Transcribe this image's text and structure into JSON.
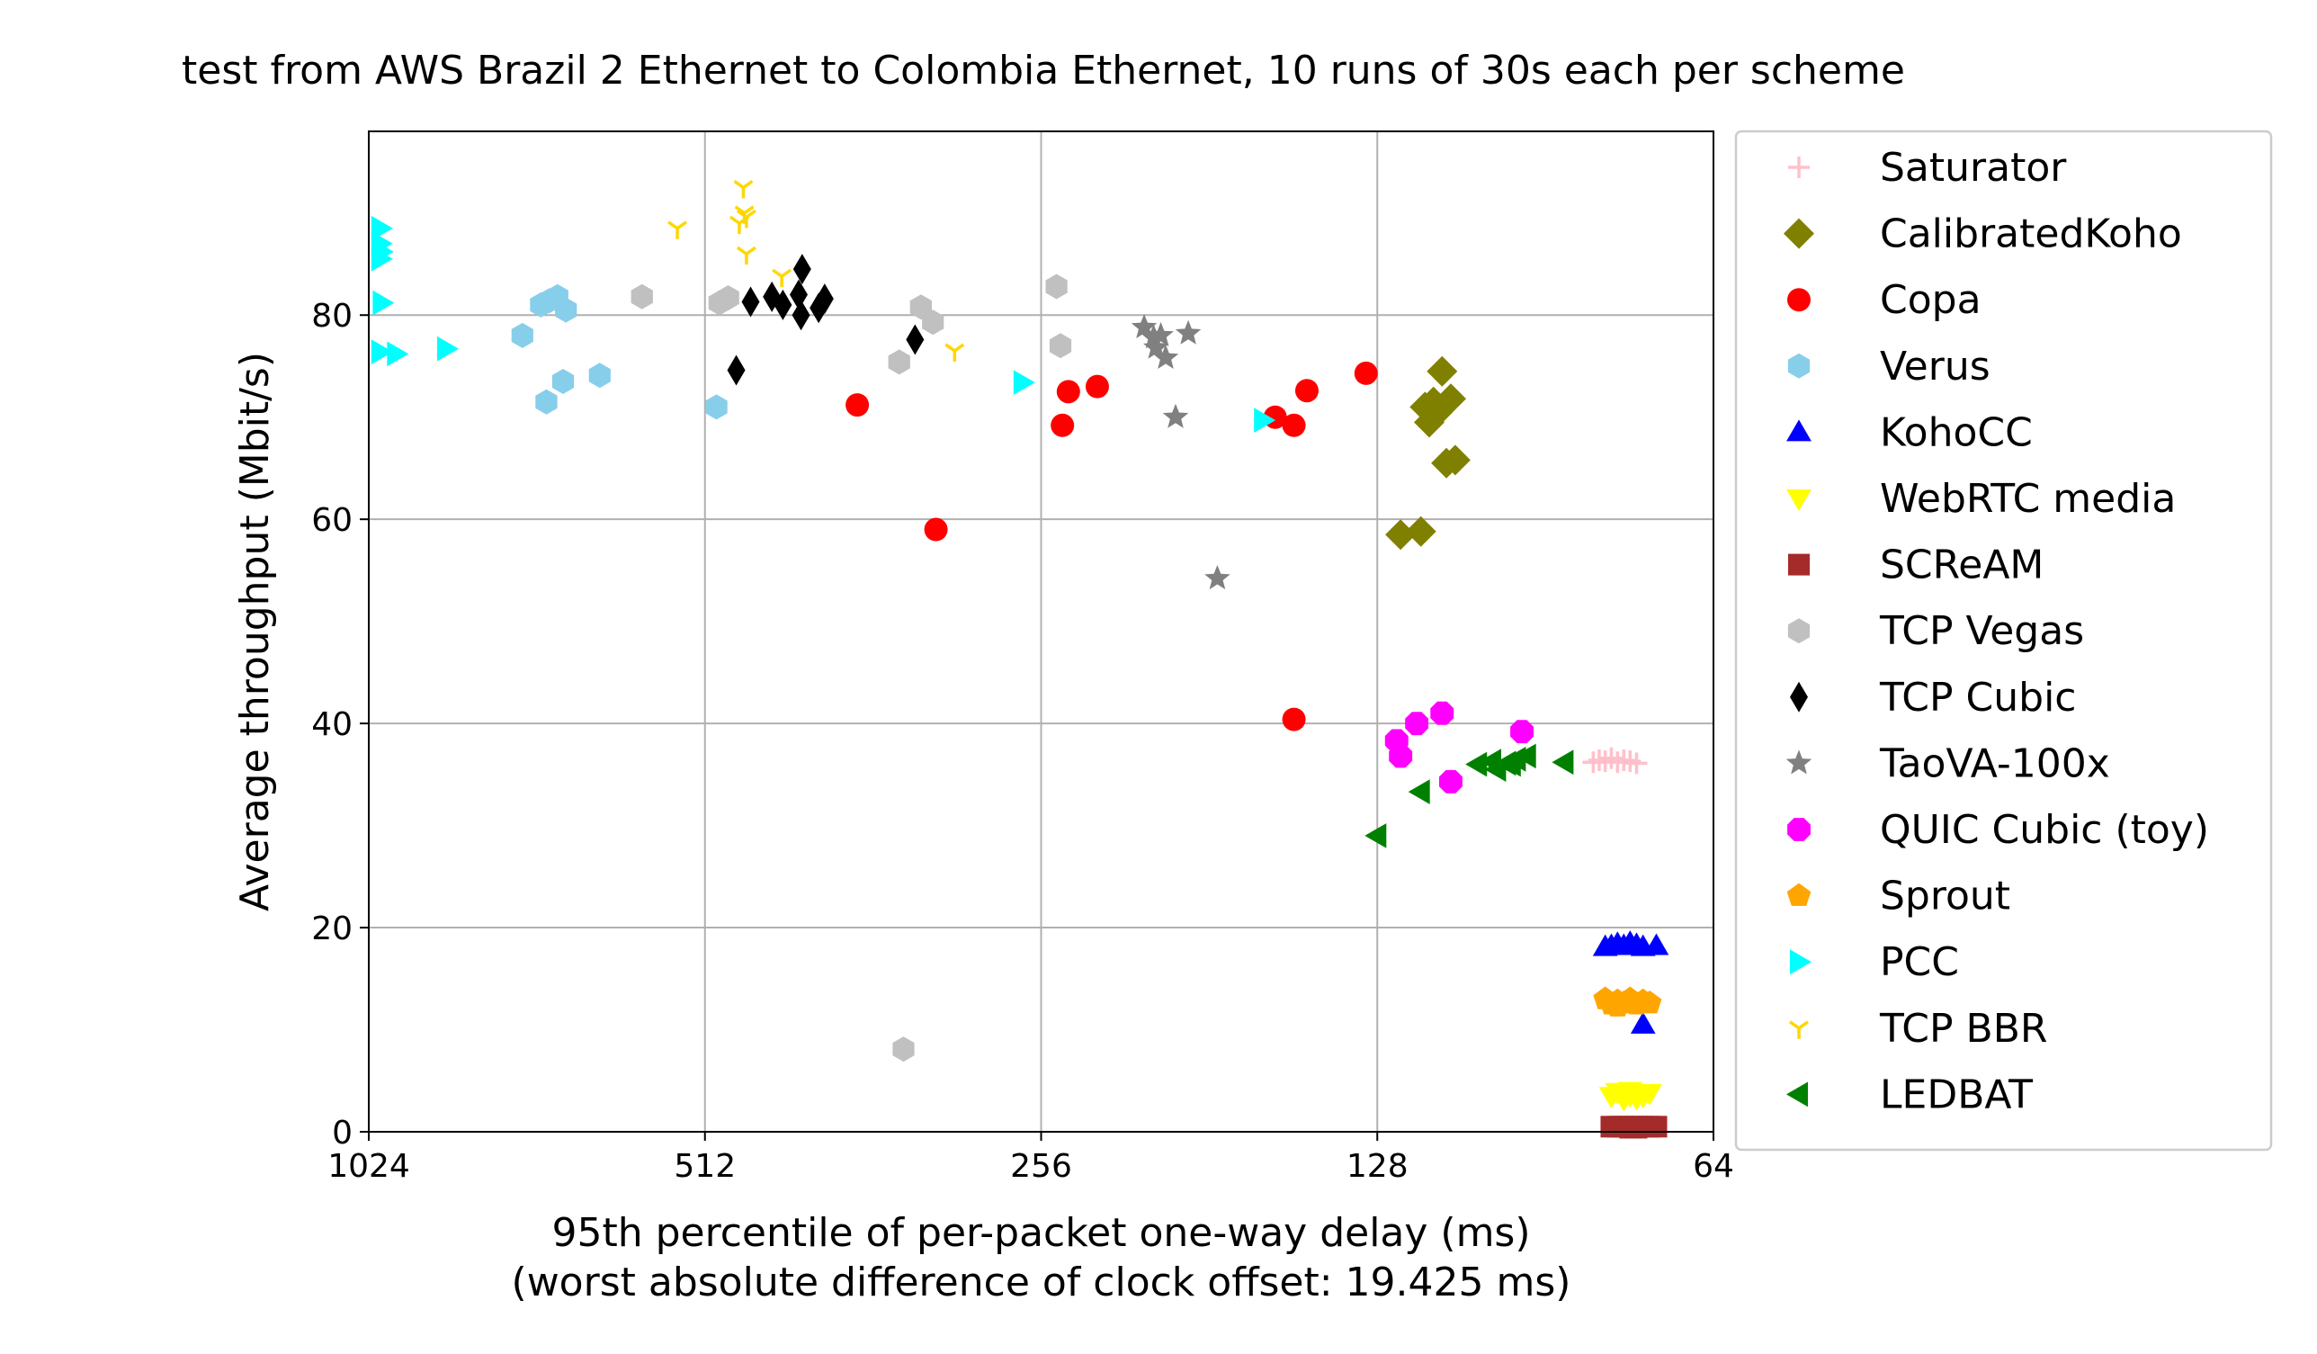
{
  "chart_data": {
    "type": "scatter",
    "title": "test from AWS Brazil 2 Ethernet to Colombia Ethernet, 10 runs of 30s each per scheme",
    "xlabel": "95th percentile of per-packet one-way delay (ms)",
    "xlabel2": "(worst absolute difference of clock offset: 19.425 ms)",
    "ylabel": "Average throughput (Mbit/s)",
    "x_scale": "log2",
    "x_inverted": true,
    "xlim": [
      1024,
      64
    ],
    "ylim": [
      0,
      98
    ],
    "x_ticks": [
      1024,
      512,
      256,
      128,
      64
    ],
    "y_ticks": [
      0,
      20,
      40,
      60,
      80
    ],
    "grid": true,
    "legend_position": "outside-right",
    "series": [
      {
        "name": "Saturator",
        "marker": "plus",
        "color": "#ffc0cb",
        "points": [
          [
            82,
            36.2
          ],
          [
            81,
            36.4
          ],
          [
            80,
            36.3
          ],
          [
            79,
            36.6
          ],
          [
            78,
            36.2
          ],
          [
            77,
            36.4
          ],
          [
            76,
            36.3
          ],
          [
            75,
            36.1
          ]
        ]
      },
      {
        "name": "CalibratedKoho",
        "marker": "diamond",
        "color": "#808000",
        "points": [
          [
            112,
            74.5
          ],
          [
            114,
            71.5
          ],
          [
            116,
            71
          ],
          [
            115,
            69.5
          ],
          [
            110,
            71.8
          ],
          [
            111,
            65.5
          ],
          [
            109,
            65.8
          ],
          [
            117,
            58.8
          ],
          [
            122,
            58.5
          ],
          [
            113,
            70.5
          ]
        ]
      },
      {
        "name": "Copa",
        "marker": "circle",
        "color": "#ff0000",
        "points": [
          [
            374,
            71.2
          ],
          [
            318,
            59
          ],
          [
            245,
            69.2
          ],
          [
            242,
            72.5
          ],
          [
            228,
            73
          ],
          [
            158,
            70
          ],
          [
            152,
            69.2
          ],
          [
            148,
            72.6
          ],
          [
            131,
            74.3
          ],
          [
            152,
            40.4
          ]
        ]
      },
      {
        "name": "Verus",
        "marker": "hexagon",
        "color": "#87ceeb",
        "points": [
          [
            746,
            78
          ],
          [
            718,
            81
          ],
          [
            706,
            81.4
          ],
          [
            694,
            81.8
          ],
          [
            682,
            80.5
          ],
          [
            710,
            71.5
          ],
          [
            686,
            73.5
          ],
          [
            636,
            74.1
          ],
          [
            500,
            71
          ]
        ]
      },
      {
        "name": "KohoCC",
        "marker": "triangle-up",
        "color": "#0000ff",
        "points": [
          [
            79,
            18.2
          ],
          [
            78,
            18.4
          ],
          [
            77,
            18.2
          ],
          [
            76,
            18.5
          ],
          [
            75,
            18.3
          ],
          [
            74,
            18.1
          ],
          [
            72,
            18.2
          ],
          [
            74,
            10.5
          ],
          [
            76,
            18.3
          ],
          [
            80,
            18.1
          ]
        ]
      },
      {
        "name": "WebRTC media",
        "marker": "triangle-down",
        "color": "#ffff00",
        "points": [
          [
            79,
            3.5
          ],
          [
            78,
            3.9
          ],
          [
            77,
            3.6
          ],
          [
            76,
            4
          ],
          [
            75,
            3.7
          ],
          [
            74,
            3.5
          ],
          [
            73,
            3.8
          ],
          [
            77,
            3.2
          ],
          [
            75,
            3.3
          ],
          [
            76,
            3.6
          ]
        ]
      },
      {
        "name": "SCReAM",
        "marker": "square",
        "color": "#a52a2a",
        "points": [
          [
            79,
            0.5
          ],
          [
            78,
            0.5
          ],
          [
            77,
            0.5
          ],
          [
            76,
            0.5
          ],
          [
            75,
            0.5
          ],
          [
            74,
            0.5
          ],
          [
            73,
            0.5
          ],
          [
            72,
            0.5
          ],
          [
            76,
            0.4
          ],
          [
            75,
            0.4
          ]
        ]
      },
      {
        "name": "TCP Vegas",
        "marker": "hexagon",
        "color": "#c0c0c0",
        "points": [
          [
            583,
            81.8
          ],
          [
            497,
            81.2
          ],
          [
            488,
            81.7
          ],
          [
            343,
            75.4
          ],
          [
            328,
            80.8
          ],
          [
            320,
            79.3
          ],
          [
            248,
            82.8
          ],
          [
            246,
            77
          ],
          [
            340,
            8.1
          ]
        ]
      },
      {
        "name": "TCP Cubic",
        "marker": "thin-diamond",
        "color": "#000000",
        "points": [
          [
            480,
            74.6
          ],
          [
            466,
            81.3
          ],
          [
            446,
            81.8
          ],
          [
            436,
            81
          ],
          [
            422,
            82
          ],
          [
            420,
            80
          ],
          [
            419,
            84.5
          ],
          [
            405,
            80.7
          ],
          [
            400,
            81.6
          ],
          [
            332,
            77.6
          ]
        ]
      },
      {
        "name": "TaoVA-100x",
        "marker": "star",
        "color": "#808080",
        "points": [
          [
            207,
            78.8
          ],
          [
            203,
            77.8
          ],
          [
            202,
            76.8
          ],
          [
            200,
            78
          ],
          [
            198,
            75.8
          ],
          [
            194,
            70
          ],
          [
            189,
            78.2
          ],
          [
            178,
            54.2
          ]
        ]
      },
      {
        "name": "QUIC Cubic (toy)",
        "marker": "octagon",
        "color": "#ff00ff",
        "points": [
          [
            123,
            38.3
          ],
          [
            122,
            36.8
          ],
          [
            118,
            40
          ],
          [
            112,
            41
          ],
          [
            110,
            34.3
          ],
          [
            95,
            39.2
          ]
        ]
      },
      {
        "name": "Sprout",
        "marker": "pentagon",
        "color": "#ffa500",
        "points": [
          [
            80,
            13
          ],
          [
            79,
            12.5
          ],
          [
            78,
            12.8
          ],
          [
            77,
            12.6
          ],
          [
            76,
            13
          ],
          [
            75,
            12.5
          ],
          [
            74,
            12.8
          ],
          [
            73,
            12.6
          ],
          [
            78,
            12.3
          ],
          [
            76,
            12.7
          ]
        ]
      },
      {
        "name": "PCC",
        "marker": "triangle-right",
        "color": "#00ffff",
        "points": [
          [
            1000,
            88.5
          ],
          [
            1000,
            87
          ],
          [
            1000,
            85.5
          ],
          [
            997,
            81.2
          ],
          [
            1000,
            76.4
          ],
          [
            968,
            76.2
          ],
          [
            873,
            76.7
          ],
          [
            266,
            73.4
          ],
          [
            162,
            69.7
          ],
          [
            998,
            86.2
          ]
        ]
      },
      {
        "name": "TCP BBR",
        "marker": "tri-down",
        "color": "#ffd700",
        "points": [
          [
            542,
            88.5
          ],
          [
            473,
            92.5
          ],
          [
            477,
            89
          ],
          [
            470,
            89.6
          ],
          [
            470,
            86
          ],
          [
            437,
            83.8
          ],
          [
            306,
            76.5
          ],
          [
            472,
            90
          ]
        ]
      },
      {
        "name": "LEDBAT",
        "marker": "triangle-left",
        "color": "#008000",
        "points": [
          [
            128,
            29
          ],
          [
            117,
            33.3
          ],
          [
            104,
            36
          ],
          [
            100,
            35.5
          ],
          [
            97,
            36
          ],
          [
            96,
            36.5
          ],
          [
            94,
            36.8
          ],
          [
            87,
            36.2
          ],
          [
            101,
            36.3
          ],
          [
            98,
            36.1
          ]
        ]
      }
    ]
  }
}
